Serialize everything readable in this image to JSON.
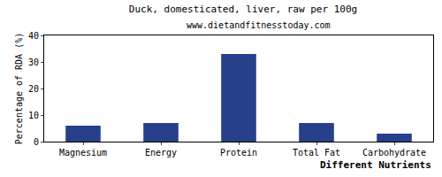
{
  "chart_data": {
    "type": "bar",
    "title": "Duck, domesticated, liver, raw per 100g",
    "subtitle": "www.dietandfitnesstoday.com",
    "x_label": "Different Nutrients",
    "y_label": "Percentage of RDA (%)",
    "categories": [
      "Magnesium",
      "Energy",
      "Protein",
      "Total Fat",
      "Carbohydrate"
    ],
    "values": [
      6,
      7,
      33,
      7,
      3
    ],
    "color": "#27408b",
    "ylim": [
      0,
      40
    ],
    "yticks": [
      0,
      10,
      20,
      30,
      40
    ],
    "grid": false
  }
}
